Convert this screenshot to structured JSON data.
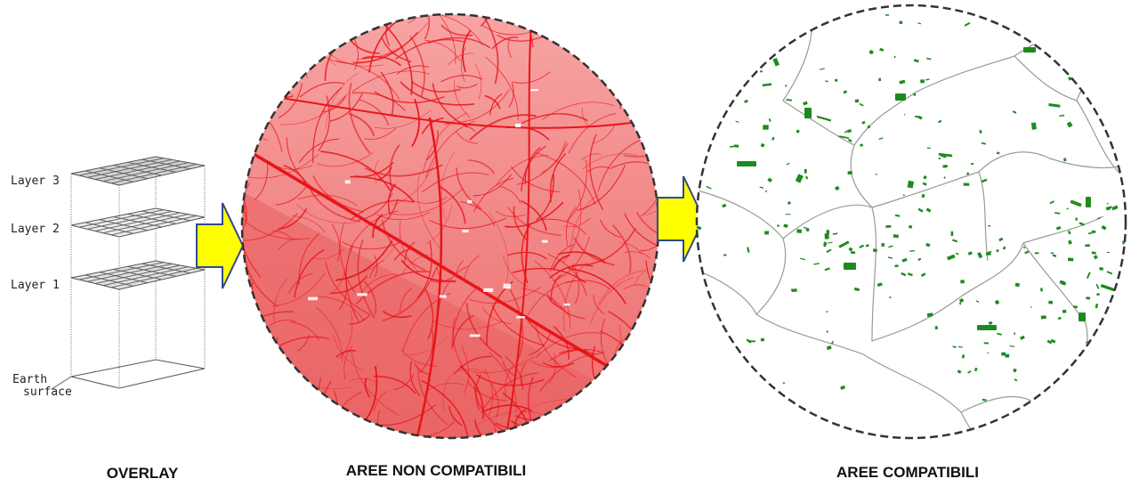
{
  "overlay": {
    "layers": [
      "Layer 3",
      "Layer 2",
      "Layer 1"
    ],
    "base_label_line1": "Earth",
    "base_label_line2": "surface",
    "caption": "OVERLAY"
  },
  "incompatible": {
    "caption": "AREE NON COMPATIBILI",
    "fill_color": "#f07373",
    "line_color": "#e8141a"
  },
  "compatible": {
    "caption": "AREE COMPATIBILI",
    "patch_color": "#1e8a1e",
    "boundary_color": "#9a9a9a"
  },
  "arrows": {
    "fill": "#ffff00",
    "stroke": "#2f4b8c"
  }
}
